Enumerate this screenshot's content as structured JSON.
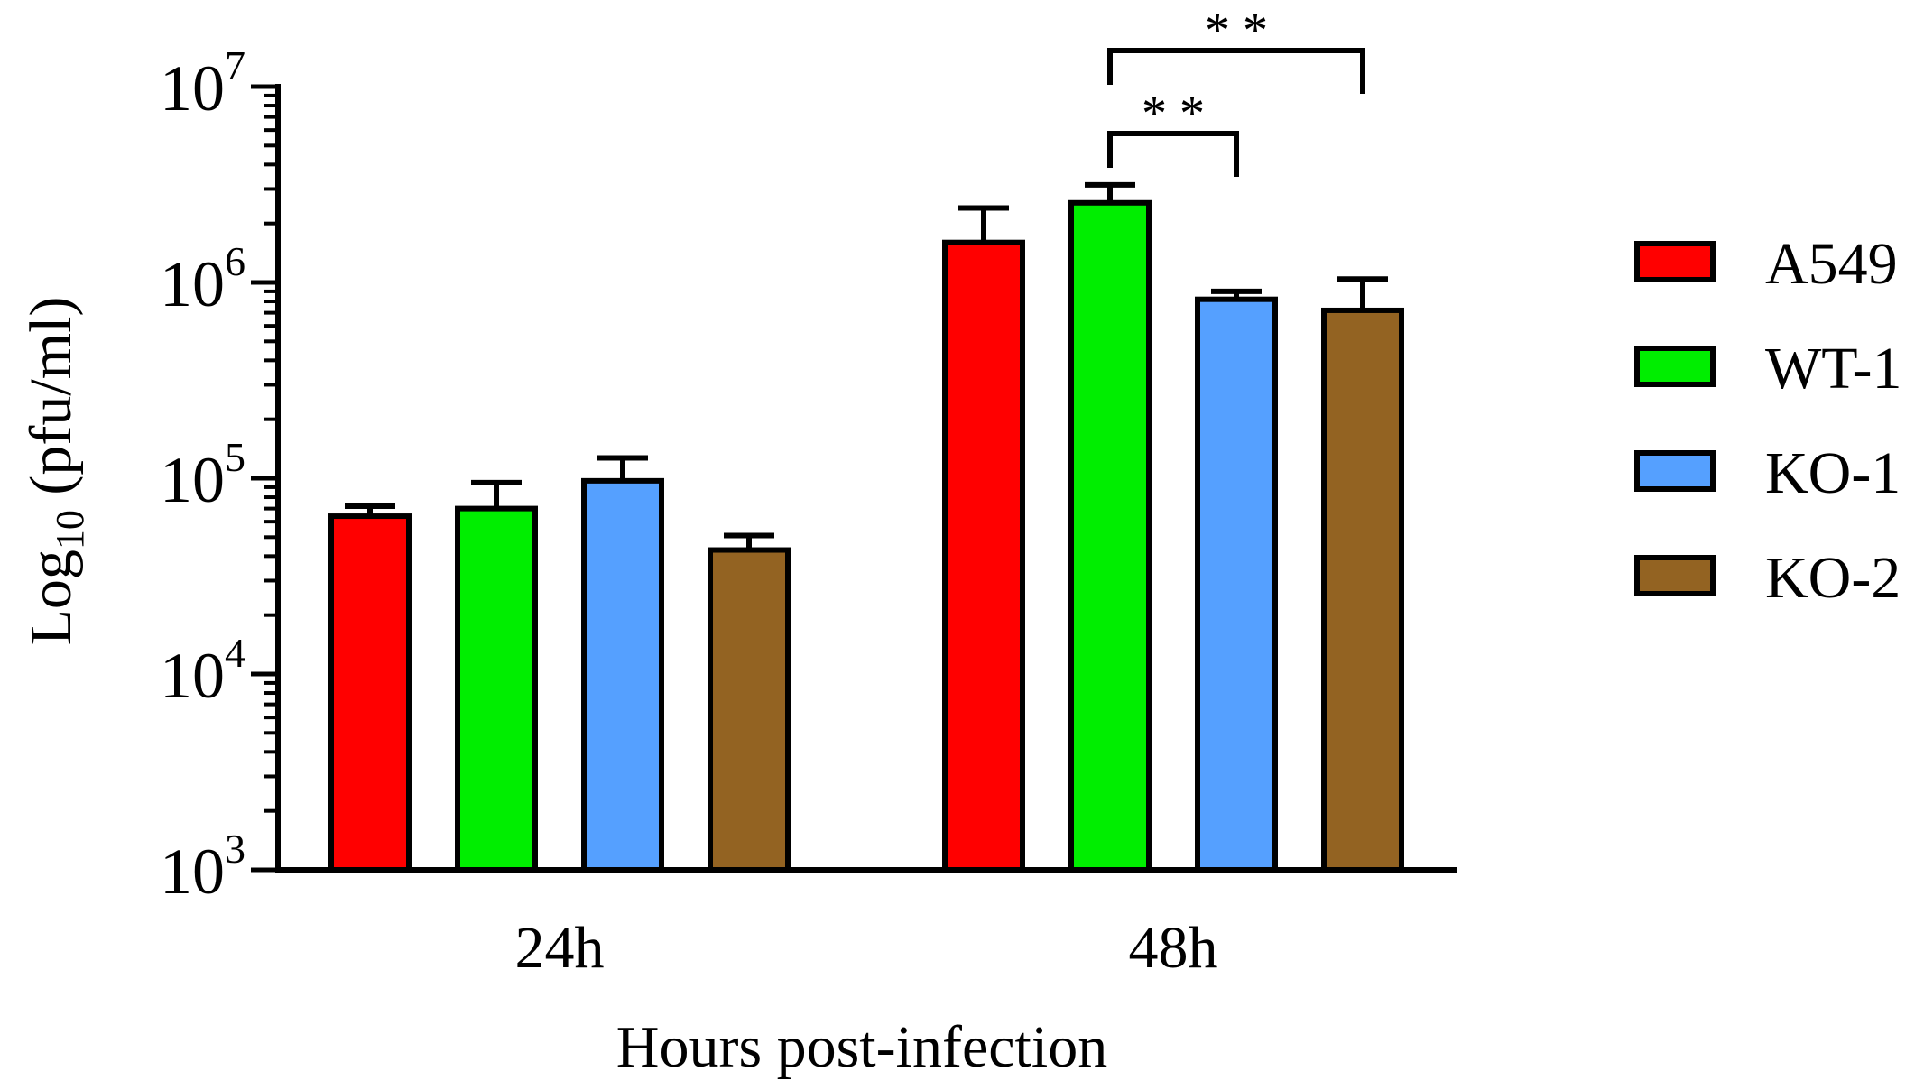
{
  "chart_data": {
    "type": "bar",
    "title": "",
    "xlabel": "Hours post-infection",
    "ylabel": "Log10 (pfu/ml)",
    "ylabel_main": "Log",
    "ylabel_sub": "10",
    "ylabel_rest": " (pfu/ml)",
    "yscale": "log",
    "ylim": [
      1000,
      10000000
    ],
    "yticks": [
      {
        "value": 1000,
        "base": "10",
        "exp": "3"
      },
      {
        "value": 10000,
        "base": "10",
        "exp": "4"
      },
      {
        "value": 100000,
        "base": "10",
        "exp": "5"
      },
      {
        "value": 1000000,
        "base": "10",
        "exp": "6"
      },
      {
        "value": 10000000,
        "base": "10",
        "exp": "7"
      }
    ],
    "categories": [
      "24h",
      "48h"
    ],
    "legend_position": "right",
    "series": [
      {
        "name": "A549",
        "color": "#ff0000",
        "values": [
          64000,
          1600000
        ],
        "errors": [
          72000,
          2400000
        ]
      },
      {
        "name": "WT-1",
        "color": "#00ee00",
        "values": [
          70000,
          2550000
        ],
        "errors": [
          95000,
          3150000
        ]
      },
      {
        "name": "KO-1",
        "color": "#55a0ff",
        "values": [
          97000,
          820000
        ],
        "errors": [
          127000,
          900000
        ]
      },
      {
        "name": "KO-2",
        "color": "#936322",
        "values": [
          43000,
          720000
        ],
        "errors": [
          51000,
          1040000
        ]
      }
    ],
    "annotations": [
      {
        "text": "* *",
        "category": "48h",
        "from_series": 1,
        "to_series": 2,
        "level": 1
      },
      {
        "text": "* *",
        "category": "48h",
        "from_series": 1,
        "to_series": 3,
        "level": 2
      }
    ]
  }
}
